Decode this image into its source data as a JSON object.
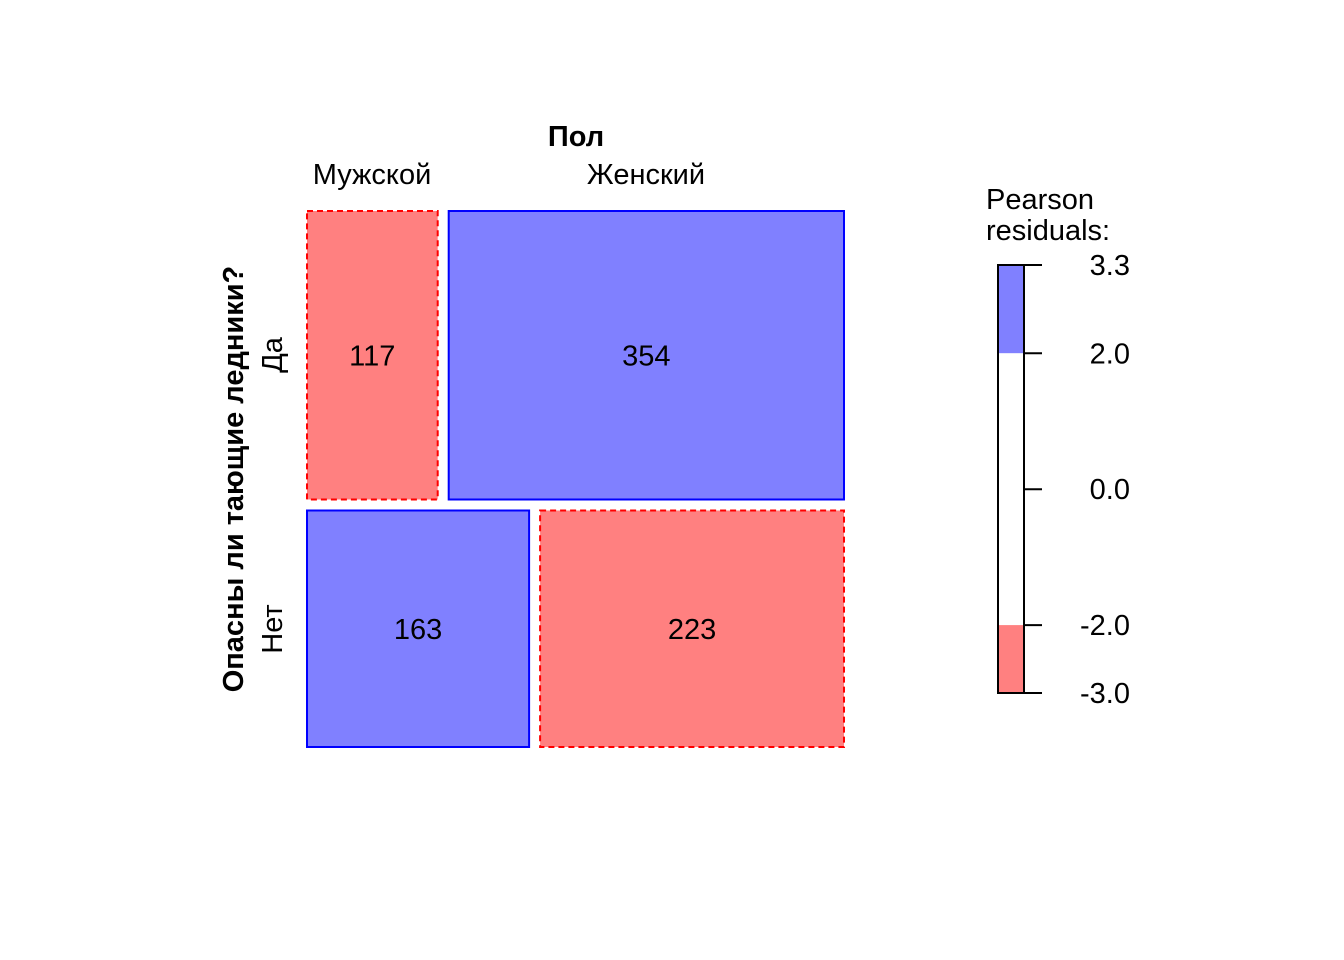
{
  "chart_data": {
    "type": "mosaic",
    "column_variable": "Пол",
    "row_variable": "Опасны ли тающие ледники?",
    "columns": [
      "Мужской",
      "Женский"
    ],
    "rows": [
      "Да",
      "Нет"
    ],
    "counts": [
      {
        "row": "Да",
        "column": "Мужской",
        "value": 117,
        "residual_sign": "negative"
      },
      {
        "row": "Да",
        "column": "Женский",
        "value": 354,
        "residual_sign": "positive"
      },
      {
        "row": "Нет",
        "column": "Мужской",
        "value": 163,
        "residual_sign": "positive"
      },
      {
        "row": "Нет",
        "column": "Женский",
        "value": 223,
        "residual_sign": "negative"
      }
    ],
    "legend": {
      "title_line1": "Pearson",
      "title_line2": "residuals:",
      "ticks": [
        "3.3",
        "2.0",
        "0.0",
        "-2.0",
        "-3.0"
      ],
      "range": [
        -3.0,
        3.3
      ],
      "bands": [
        {
          "from": 2.0,
          "to": 3.3,
          "color": "#8080ff"
        },
        {
          "from": -2.0,
          "to": 2.0,
          "color": "#ffffff"
        },
        {
          "from": -3.0,
          "to": -2.0,
          "color": "#ff8080"
        }
      ]
    },
    "colors": {
      "positive_fill": "#8080ff",
      "positive_border": "#0000ff",
      "negative_fill": "#ff8080",
      "negative_border": "#ff0000"
    }
  }
}
